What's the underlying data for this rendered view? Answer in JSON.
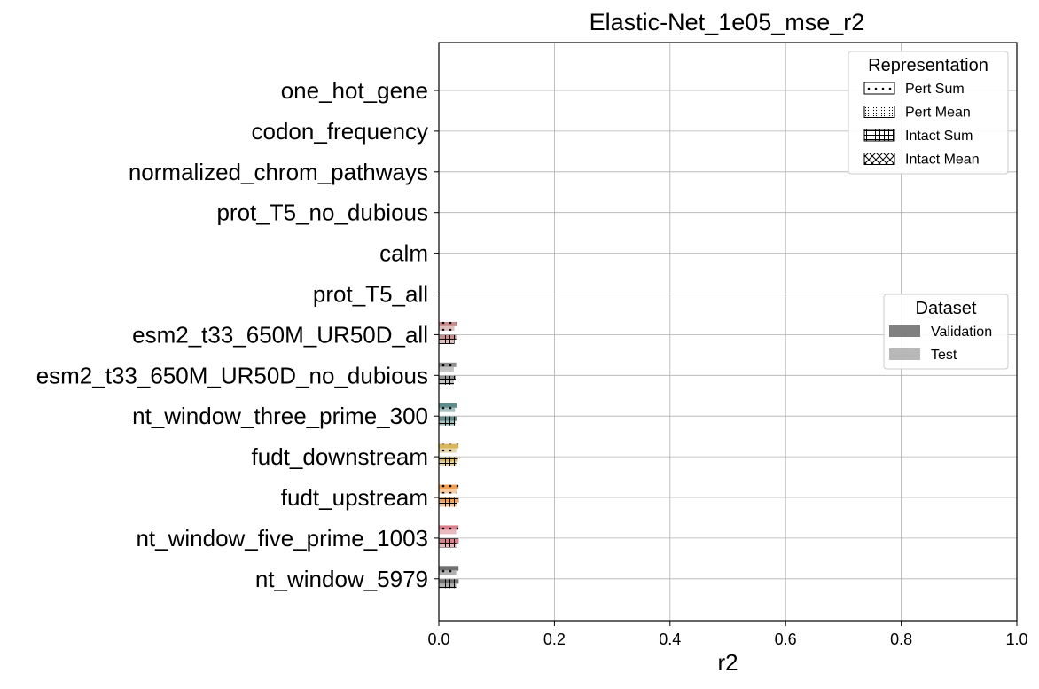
{
  "chart_data": {
    "type": "bar",
    "orientation": "horizontal",
    "title": "Elastic-Net_1e05_mse_r2",
    "xlabel": "r2",
    "ylabel": "",
    "xlim": [
      0,
      1
    ],
    "xticks": [
      "0.0",
      "0.2",
      "0.4",
      "0.6",
      "0.8",
      "1.0"
    ],
    "grid": true,
    "categories": [
      "one_hot_gene",
      "codon_frequency",
      "normalized_chrom_pathways",
      "prot_T5_no_dubious",
      "calm",
      "prot_T5_all",
      "esm2_t33_650M_UR50D_all",
      "esm2_t33_650M_UR50D_no_dubious",
      "nt_window_three_prime_300",
      "fudt_downstream",
      "fudt_upstream",
      "nt_window_five_prime_1003",
      "nt_window_5979"
    ],
    "category_colors": [
      "#888888",
      "#888888",
      "#888888",
      "#888888",
      "#888888",
      "#888888",
      "#c98b8b",
      "#8f8f8f",
      "#5f8b8b",
      "#d9b75f",
      "#f0a050",
      "#d9808a",
      "#707070"
    ],
    "series": [
      {
        "representation": "Pert Sum",
        "dataset": "Validation",
        "values": [
          0,
          0,
          0,
          0,
          0,
          0,
          0.031,
          0.03,
          0.031,
          0.034,
          0.034,
          0.034,
          0.034
        ]
      },
      {
        "representation": "Pert Sum",
        "dataset": "Test",
        "values": [
          0,
          0,
          0,
          0,
          0,
          0,
          0.027,
          0.026,
          0.028,
          0.03,
          0.031,
          0.03,
          0.03
        ]
      },
      {
        "representation": "Intact Sum",
        "dataset": "Validation",
        "values": [
          0,
          0,
          0,
          0,
          0,
          0,
          0.03,
          0.029,
          0.031,
          0.033,
          0.034,
          0.034,
          0.034
        ]
      },
      {
        "representation": "Intact Sum",
        "dataset": "Test",
        "values": [
          0,
          0,
          0,
          0,
          0,
          0,
          0.027,
          0.026,
          0.028,
          0.03,
          0.031,
          0.03,
          0.03
        ]
      }
    ],
    "legends": [
      {
        "title": "Representation",
        "placement": "top-right",
        "entries": [
          {
            "label": "Pert Sum",
            "hatch": "dots"
          },
          {
            "label": "Pert Mean",
            "hatch": "fine-dots"
          },
          {
            "label": "Intact Sum",
            "hatch": "grid"
          },
          {
            "label": "Intact Mean",
            "hatch": "cross"
          }
        ]
      },
      {
        "title": "Dataset",
        "placement": "center-right",
        "entries": [
          {
            "label": "Validation",
            "color": "#808080"
          },
          {
            "label": "Test",
            "color": "#b8b8b8"
          }
        ]
      }
    ]
  }
}
